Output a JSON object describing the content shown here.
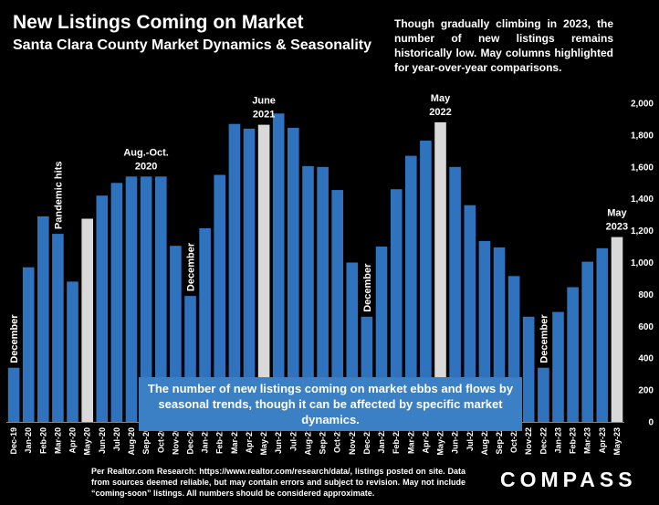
{
  "header": {
    "title": "New Listings Coming on Market",
    "subtitle": "Santa Clara County Market Dynamics & Seasonality",
    "description": "Though gradually climbing in 2023, the number of new listings remains historically low. May columns highlighted for year-over-year comparisons."
  },
  "callout": "The number of new listings coming on market ebbs and flows by seasonal trends, though it can be affected by specific market dynamics.",
  "footer": {
    "source": "Per Realtor.com Research: https://www.realtor.com/research/data/, listings posted on site. Data from sources deemed reliable, but may contain errors and subject to revision. May not include “coming-soon” listings. All numbers should be considered approximate.",
    "brand": "COMPASS"
  },
  "colors": {
    "bar": "#2f73bf",
    "highlight": "#d9d9d9",
    "background": "#000000",
    "callout": "#3b7fc4"
  },
  "chart_data": {
    "type": "bar",
    "categories": [
      "Dec-19",
      "Jan-20",
      "Feb-20",
      "Mar-20",
      "Apr-20",
      "May-20",
      "Jun-20",
      "Jul-20",
      "Aug-20",
      "Sep-20",
      "Oct-20",
      "Nov-20",
      "Dec-20",
      "Jan-21",
      "Feb-21",
      "Mar-21",
      "Apr-21",
      "May-21",
      "Jun-21",
      "Jul-21",
      "Aug-21",
      "Sep-21",
      "Oct-21",
      "Nov-21",
      "Dec-21",
      "Jan-22",
      "Feb-22",
      "Mar-22",
      "Apr-22",
      "May-22",
      "Jun-22",
      "Jul-22",
      "Aug-22",
      "Sep-22",
      "Oct-22",
      "Nov-22",
      "Dec-22",
      "Jan-23",
      "Feb-23",
      "Mar-23",
      "Apr-23",
      "May-23"
    ],
    "values": [
      340,
      970,
      1290,
      1180,
      880,
      1275,
      1420,
      1500,
      1540,
      1540,
      1540,
      1105,
      790,
      1215,
      1550,
      1870,
      1840,
      1865,
      1935,
      1845,
      1605,
      1600,
      1455,
      1000,
      660,
      1100,
      1460,
      1670,
      1765,
      1880,
      1600,
      1360,
      1135,
      1095,
      915,
      660,
      340,
      690,
      845,
      1005,
      1090,
      1160
    ],
    "highlighted": [
      "May-20",
      "May-21",
      "May-22",
      "May-23"
    ],
    "ylim": [
      0,
      2000
    ],
    "yticks": [
      0,
      200,
      400,
      600,
      800,
      1000,
      1200,
      1400,
      1600,
      1800,
      2000
    ],
    "ytick_labels": [
      "0",
      "200",
      "400",
      "600",
      "800",
      "1,000",
      "1,200",
      "1,400",
      "1,600",
      "1,800",
      "2,000"
    ],
    "y_axis_position": "right",
    "grid": false,
    "annotations": [
      {
        "category": "Dec-19",
        "text": "December",
        "orientation": "vertical"
      },
      {
        "category": "Mar-20",
        "text": "Pandemic hits",
        "orientation": "vertical"
      },
      {
        "category": "Sep-20",
        "text": "Aug.-Oct.\n2020",
        "orientation": "horizontal"
      },
      {
        "category": "Dec-20",
        "text": "December",
        "orientation": "vertical"
      },
      {
        "category": "May-21",
        "text": "June\n2021",
        "orientation": "horizontal"
      },
      {
        "category": "Dec-21",
        "text": "December",
        "orientation": "vertical"
      },
      {
        "category": "May-22",
        "text": "May\n2022",
        "orientation": "horizontal"
      },
      {
        "category": "Dec-22",
        "text": "December",
        "orientation": "vertical"
      },
      {
        "category": "May-23",
        "text": "May\n2023",
        "orientation": "horizontal"
      }
    ]
  }
}
